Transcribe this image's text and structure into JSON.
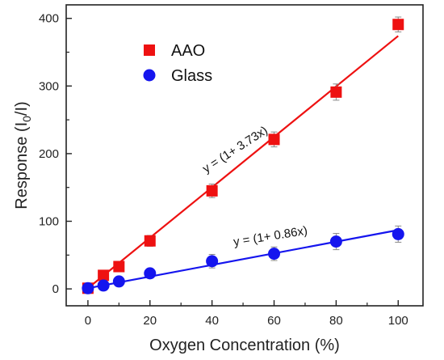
{
  "chart_data": {
    "type": "scatter",
    "xlabel": "Oxygen Concentration (%)",
    "ylabel_parts": [
      "Response (I",
      "0",
      "/I)"
    ],
    "xlim": [
      -7,
      108
    ],
    "ylim": [
      -25,
      420
    ],
    "xticks": [
      0,
      20,
      40,
      60,
      80,
      100
    ],
    "yticks": [
      0,
      100,
      200,
      300,
      400
    ],
    "grid": false,
    "legend_position": "top-left",
    "series": [
      {
        "name": "AAO",
        "color": "#ee1111",
        "marker": "square",
        "x": [
          0,
          5,
          10,
          20,
          40,
          60,
          80,
          100
        ],
        "y": [
          1,
          20,
          33,
          71,
          145,
          221,
          291,
          391
        ],
        "err": [
          3,
          5,
          7,
          8,
          10,
          11,
          12,
          11
        ],
        "fit": {
          "slope": 3.73,
          "intercept": 1,
          "label": "y = (1+ 3.73x)"
        }
      },
      {
        "name": "Glass",
        "color": "#1515ee",
        "marker": "circle",
        "x": [
          0,
          5,
          10,
          20,
          40,
          60,
          80,
          100
        ],
        "y": [
          1,
          5,
          11,
          23,
          41,
          52,
          70,
          81
        ],
        "err": [
          3,
          4,
          5,
          6,
          10,
          10,
          12,
          12
        ],
        "fit": {
          "slope": 0.86,
          "intercept": 1,
          "label": "y = (1+ 0.86x)"
        }
      }
    ]
  }
}
